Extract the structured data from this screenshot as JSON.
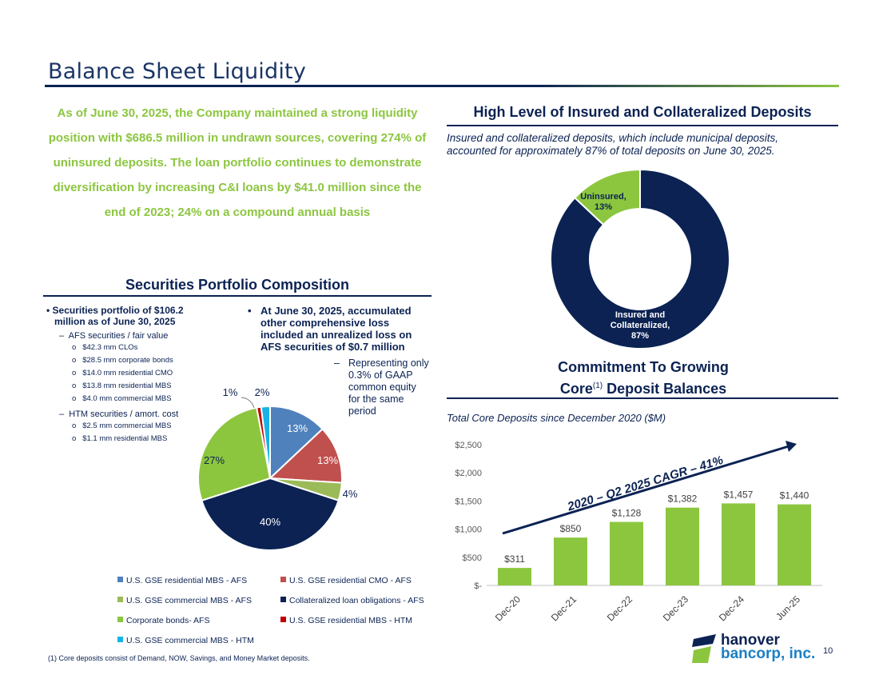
{
  "page": {
    "title": "Balance Sheet Liquidity",
    "intro": "As of June 30, 2025, the Company maintained a strong liquidity position with $686.5 million in undrawn sources, covering 274% of uninsured deposits. The loan portfolio continues to demonstrate diversification by increasing C&I loans by $41.0 million since the end of 2023; 24% on a compound annual basis",
    "footnote": "(1) Core deposits consist of Demand, NOW, Savings, and Money Market deposits.",
    "page_number": "10",
    "logo": {
      "line1": "hanover",
      "line2": "bancorp, inc."
    }
  },
  "securities": {
    "heading": "Securities Portfolio Composition",
    "bullet_main": "Securities portfolio of $106.2 million as of June 30, 2025",
    "afs_label": "AFS securities / fair value",
    "afs_items": [
      "$42.3 mm CLOs",
      "$28.5 mm corporate bonds",
      "$14.0 mm residential CMO",
      "$13.8 mm residential MBS",
      "$4.0 mm commercial MBS"
    ],
    "htm_label": "HTM securities / amort. cost",
    "htm_items": [
      "$2.5 mm commercial MBS",
      "$1.1 mm residential MBS"
    ],
    "aoci_bullet": "At June 30, 2025, accumulated other comprehensive loss included an unrealized loss on AFS securities of $0.7 million",
    "aoci_sub": "Representing only 0.3% of GAAP common equity for the same period",
    "bullet_char": "•",
    "dash_char": "–",
    "circle_char": "o"
  },
  "deposits": {
    "heading": "High Level of Insured and Collateralized Deposits",
    "description": "Insured and collateralized deposits, which include municipal deposits, accounted for approximately 87% of total deposits on June 30, 2025."
  },
  "core": {
    "heading_line1": "Commitment To Growing",
    "heading_line2_a": "Core",
    "heading_sup": "(1)",
    "heading_line2_b": " Deposit Balances",
    "subtitle": "Total Core Deposits since December 2020 ($M)",
    "cagr_label": "2020 – Q2 2025 CAGR – 41%"
  },
  "chart_data": [
    {
      "type": "pie",
      "categories": [
        "U.S. GSE residential MBS - AFS",
        "U.S. GSE residential CMO - AFS",
        "U.S. GSE commercial MBS -  AFS",
        "Collateralized loan obligations - AFS",
        "Corporate bonds- AFS",
        "U.S. GSE residential MBS - HTM",
        "U.S. GSE commercial MBS - HTM"
      ],
      "values": [
        13,
        13,
        4,
        40,
        27,
        1,
        2
      ],
      "labels": [
        "13%",
        "13%",
        "4%",
        "40%",
        "27%",
        "1%",
        "2%"
      ],
      "colors": [
        "#4f81bd",
        "#c0504d",
        "#9bbb59",
        "#0b2253",
        "#8cc63f",
        "#c00000",
        "#17b3e6"
      ],
      "legend_position": "bottom"
    },
    {
      "type": "pie",
      "categories": [
        "Insured and Collateralized",
        "Uninsured"
      ],
      "values": [
        87,
        13
      ],
      "labels": [
        [
          "Insured and",
          "Collateralized,",
          "87%"
        ],
        [
          "Uninsured,",
          "13%"
        ]
      ],
      "colors": [
        "#0b2253",
        "#8cc63f"
      ]
    },
    {
      "type": "bar",
      "categories": [
        "Dec-20",
        "Dec-21",
        "Dec-22",
        "Dec-23",
        "Dec-24",
        "Jun-25"
      ],
      "values": [
        311,
        850,
        1128,
        1382,
        1457,
        1440
      ],
      "labels": [
        "$311",
        "$850",
        "$1,128",
        "$1,382",
        "$1,457",
        "$1,440"
      ],
      "yticks": [
        0,
        500,
        1000,
        1500,
        2000,
        2500
      ],
      "ytick_labels": [
        "$-",
        "$500",
        "$1,000",
        "$1,500",
        "$2,000",
        "$2,500"
      ],
      "ylim": [
        0,
        2500
      ],
      "color": "#8cc63f",
      "grid": false
    }
  ]
}
